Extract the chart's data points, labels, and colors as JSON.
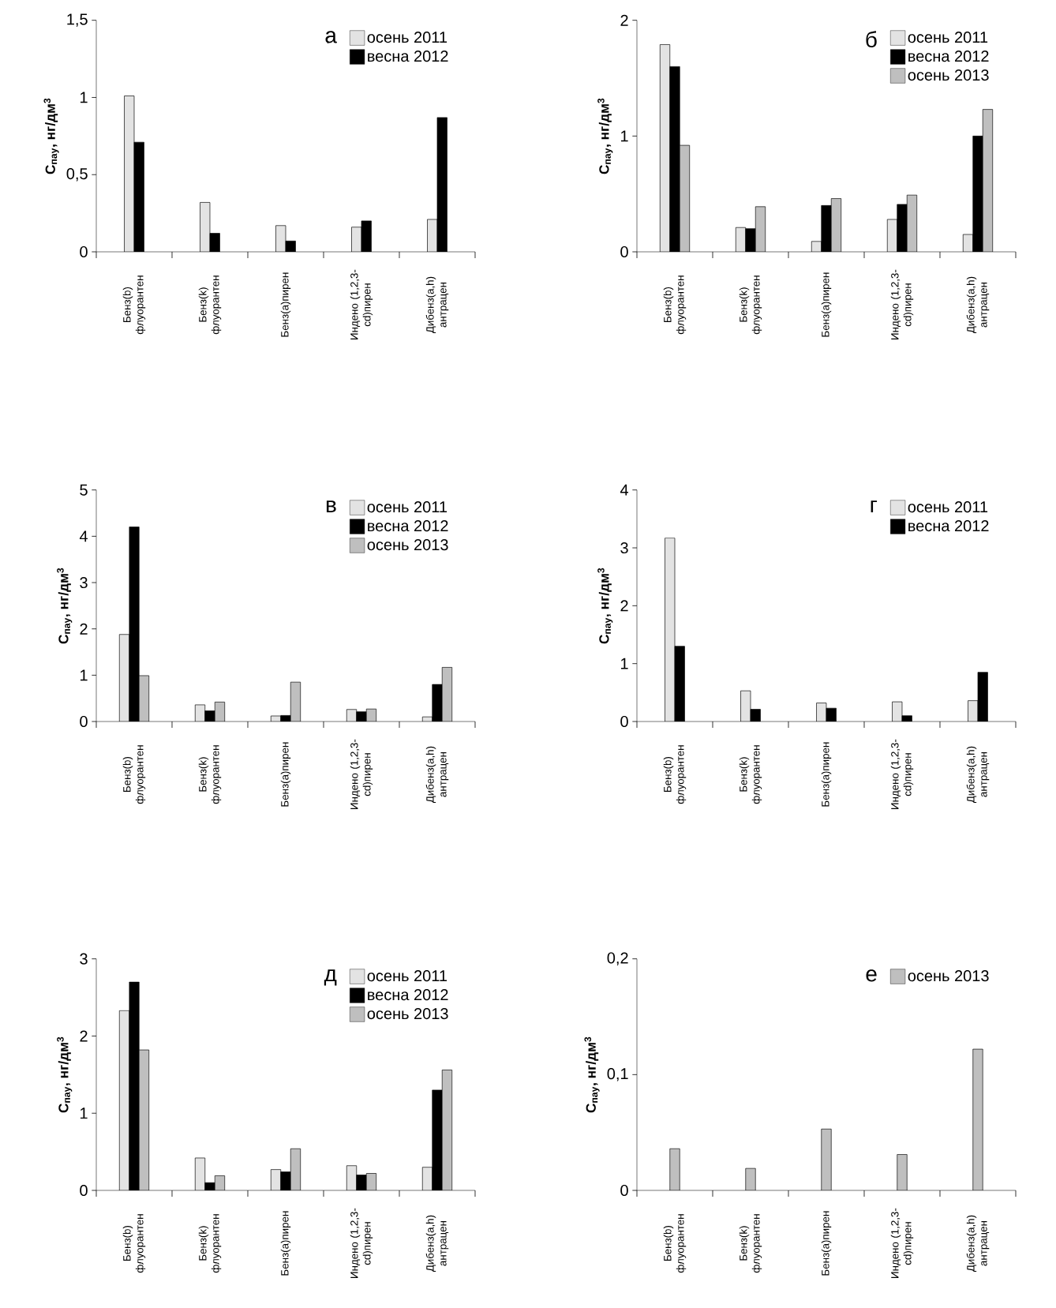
{
  "chart_data": [
    {
      "type": "bar",
      "title": "а",
      "ylabel": "C$_{пау}$, нг/дм$^{3}$",
      "categories": [
        "Бенз(b) флуорантен",
        "Бенз(k) флуорантен",
        "Бенз(a)пирен",
        "Индено (1,2,3-cd)пирен",
        "Дибенз(a,h) антрацен"
      ],
      "ylim": [
        0,
        1.5
      ],
      "yticks": [
        0,
        {
          "value": 0.5,
          "label": "0,5"
        },
        1,
        {
          "value": 1.5,
          "label": "1,5"
        }
      ],
      "legend": "top right",
      "series": [
        {
          "name": "осень 2011",
          "color": "#e3e3e3",
          "values": [
            1.01,
            0.32,
            0.17,
            0.16,
            0.21
          ]
        },
        {
          "name": "весна 2012",
          "color": "#000000",
          "values": [
            0.71,
            0.12,
            0.07,
            0.2,
            0.87
          ]
        }
      ]
    },
    {
      "type": "bar",
      "title": "б",
      "ylabel": "C$_{пау}$, нг/дм$^{3}$",
      "categories": [
        "Бенз(b) флуорантен",
        "Бенз(k) флуорантен",
        "Бенз(a)пирен",
        "Индено (1,2,3-cd)пирен",
        "Дибенз(a,h) антрацен"
      ],
      "ylim": [
        0,
        2
      ],
      "yticks": [
        0,
        1,
        2
      ],
      "legend": "top right",
      "series": [
        {
          "name": "осень 2011",
          "color": "#e3e3e3",
          "values": [
            1.79,
            0.21,
            0.09,
            0.28,
            0.15
          ]
        },
        {
          "name": "весна 2012",
          "color": "#000000",
          "values": [
            1.6,
            0.2,
            0.4,
            0.41,
            1.0
          ]
        },
        {
          "name": "осень 2013",
          "color": "#bfbfbf",
          "values": [
            0.92,
            0.39,
            0.46,
            0.49,
            1.23
          ]
        }
      ]
    },
    {
      "type": "bar",
      "title": "в",
      "ylabel": "C$_{пау}$, нг/дм$^{3}$",
      "categories": [
        "Бенз(b) флуорантен",
        "Бенз(k) флуорантен",
        "Бенз(a)пирен",
        "Индено (1,2,3-cd)пирен",
        "Дибенз(a,h) антрацен"
      ],
      "ylim": [
        0,
        5
      ],
      "yticks": [
        0,
        1,
        2,
        3,
        4,
        5
      ],
      "legend": "top right",
      "series": [
        {
          "name": "осень 2011",
          "color": "#e3e3e3",
          "values": [
            1.88,
            0.36,
            0.12,
            0.26,
            0.1
          ]
        },
        {
          "name": "весна 2012",
          "color": "#000000",
          "values": [
            4.2,
            0.23,
            0.13,
            0.21,
            0.8
          ]
        },
        {
          "name": "осень 2013",
          "color": "#bfbfbf",
          "values": [
            0.99,
            0.42,
            0.85,
            0.27,
            1.17
          ]
        }
      ]
    },
    {
      "type": "bar",
      "title": "г",
      "ylabel": "C$_{пау}$, нг/дм$^{3}$",
      "categories": [
        "Бенз(b) флуорантен",
        "Бенз(k) флуорантен",
        "Бенз(a)пирен",
        "Индено (1,2,3-cd)пирен",
        "Дибенз(a,h) антрацен"
      ],
      "ylim": [
        0,
        4
      ],
      "yticks": [
        0,
        1,
        2,
        3,
        4
      ],
      "legend": "top right",
      "series": [
        {
          "name": "осень 2011",
          "color": "#e3e3e3",
          "values": [
            3.17,
            0.53,
            0.32,
            0.34,
            0.36
          ]
        },
        {
          "name": "весна 2012",
          "color": "#000000",
          "values": [
            1.3,
            0.21,
            0.23,
            0.1,
            0.85
          ]
        }
      ]
    },
    {
      "type": "bar",
      "title": "д",
      "ylabel": "C$_{пау}$, нг/дм$^{3}$",
      "categories": [
        "Бенз(b) флуорантен",
        "Бенз(k) флуорантен",
        "Бенз(a)пирен",
        "Индено (1,2,3-cd)пирен",
        "Дибенз(a,h) антрацен"
      ],
      "ylim": [
        0,
        3
      ],
      "yticks": [
        0,
        1,
        2,
        3
      ],
      "legend": "top right",
      "series": [
        {
          "name": "осень 2011",
          "color": "#e3e3e3",
          "values": [
            2.33,
            0.42,
            0.27,
            0.32,
            0.3
          ]
        },
        {
          "name": "весна 2012",
          "color": "#000000",
          "values": [
            2.7,
            0.1,
            0.24,
            0.2,
            1.3
          ]
        },
        {
          "name": "осень 2013",
          "color": "#bfbfbf",
          "values": [
            1.82,
            0.19,
            0.54,
            0.22,
            1.56
          ]
        }
      ]
    },
    {
      "type": "bar",
      "title": "е",
      "ylabel": "C$_{пау}$, нг/дм$^{3}$",
      "categories": [
        "Бенз(b) флуорантен",
        "Бенз(k) флуорантен",
        "Бенз(a)пирен",
        "Индено (1,2,3-cd)пирен",
        "Дибенз(a,h) антрацен"
      ],
      "ylim": [
        0,
        0.2
      ],
      "yticks": [
        0,
        {
          "value": 0.1,
          "label": "0,1"
        },
        {
          "value": 0.2,
          "label": "0,2"
        }
      ],
      "legend": "top right",
      "series": [
        {
          "name": "осень 2013",
          "color": "#bfbfbf",
          "values": [
            0.036,
            0.019,
            0.053,
            0.031,
            0.122
          ]
        }
      ]
    }
  ]
}
